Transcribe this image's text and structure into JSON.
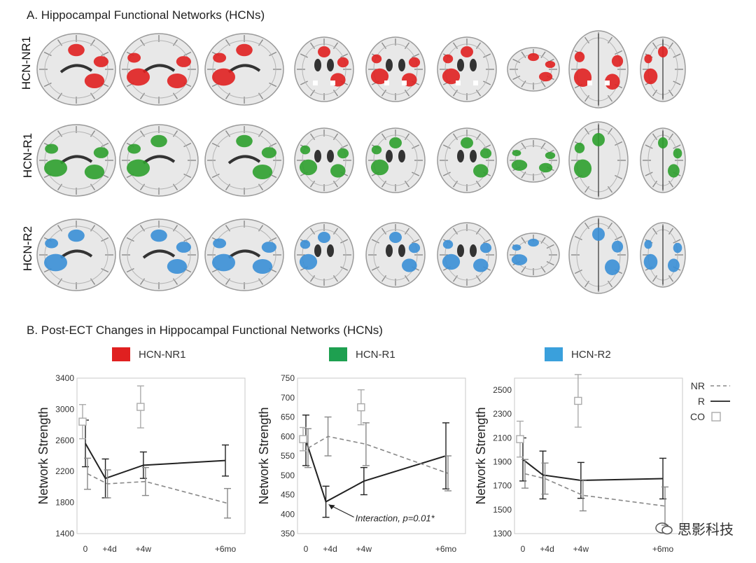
{
  "panel_a": {
    "title": "A. Hippocampal Functional Networks (HCNs)",
    "rows": [
      {
        "label": "HCN-NR1",
        "color": "#e02020"
      },
      {
        "label": "HCN-R1",
        "color": "#2ea02e"
      },
      {
        "label": "HCN-R2",
        "color": "#3a8fd6"
      }
    ]
  },
  "panel_b": {
    "title": "B. Post-ECT Changes in Hippocampal Functional Networks (HCNs)",
    "legend": [
      {
        "label": "HCN-NR1",
        "color": "#e02020"
      },
      {
        "label": "HCN-R1",
        "color": "#1ea050"
      },
      {
        "label": "HCN-R2",
        "color": "#3aa0dc"
      }
    ],
    "marker_legend": {
      "nr": "NR",
      "r": "R",
      "co": "CO"
    }
  },
  "chart_data": [
    {
      "type": "line",
      "ylabel": "Network Strength",
      "xticks": [
        "0",
        "+4d",
        "+4w",
        "+6mo"
      ],
      "x": [
        0,
        4,
        28,
        180
      ],
      "ylim": [
        1400,
        3400
      ],
      "yticks": [
        1400,
        1800,
        2200,
        2600,
        3000,
        3400
      ],
      "series": [
        {
          "name": "R",
          "style": "solid",
          "values": [
            2560,
            2110,
            2280,
            2340
          ],
          "err": [
            300,
            250,
            170,
            200
          ]
        },
        {
          "name": "NR",
          "style": "dashed",
          "values": [
            2170,
            2040,
            2070,
            1790
          ],
          "err": [
            200,
            180,
            180,
            190
          ]
        },
        {
          "name": "CO",
          "style": "square",
          "x": [
            0,
            28
          ],
          "values": [
            2840,
            3030
          ],
          "err": [
            220,
            270
          ]
        }
      ]
    },
    {
      "type": "line",
      "ylabel": "Network Strength",
      "xticks": [
        "0",
        "+4d",
        "+4w",
        "+6mo"
      ],
      "x": [
        0,
        4,
        28,
        180
      ],
      "ylim": [
        350,
        750
      ],
      "yticks": [
        350,
        400,
        450,
        500,
        550,
        600,
        650,
        700,
        750
      ],
      "annotation": "Interaction, p=0.01*",
      "series": [
        {
          "name": "R",
          "style": "solid",
          "values": [
            590,
            432,
            485,
            550
          ],
          "err": [
            65,
            40,
            35,
            85
          ]
        },
        {
          "name": "NR",
          "style": "dashed",
          "values": [
            570,
            600,
            580,
            505
          ],
          "err": [
            50,
            50,
            55,
            45
          ]
        },
        {
          "name": "CO",
          "style": "square",
          "x": [
            0,
            28
          ],
          "values": [
            593,
            675
          ],
          "err": [
            30,
            45
          ]
        }
      ]
    },
    {
      "type": "line",
      "ylabel": "Network Strength",
      "xticks": [
        "0",
        "+4d",
        "+4w",
        "+6mo"
      ],
      "x": [
        0,
        4,
        28,
        180
      ],
      "ylim": [
        1300,
        2600
      ],
      "yticks": [
        1300,
        1500,
        1700,
        1900,
        2100,
        2300,
        2500
      ],
      "series": [
        {
          "name": "R",
          "style": "solid",
          "values": [
            1920,
            1790,
            1745,
            1760
          ],
          "err": [
            180,
            200,
            150,
            170
          ]
        },
        {
          "name": "NR",
          "style": "dashed",
          "values": [
            1800,
            1760,
            1620,
            1530
          ],
          "err": [
            120,
            130,
            130,
            160
          ]
        },
        {
          "name": "CO",
          "style": "square",
          "x": [
            0,
            28
          ],
          "values": [
            2090,
            2410
          ],
          "err": [
            150,
            220
          ]
        }
      ]
    }
  ],
  "watermark": {
    "text": "思影科技"
  }
}
